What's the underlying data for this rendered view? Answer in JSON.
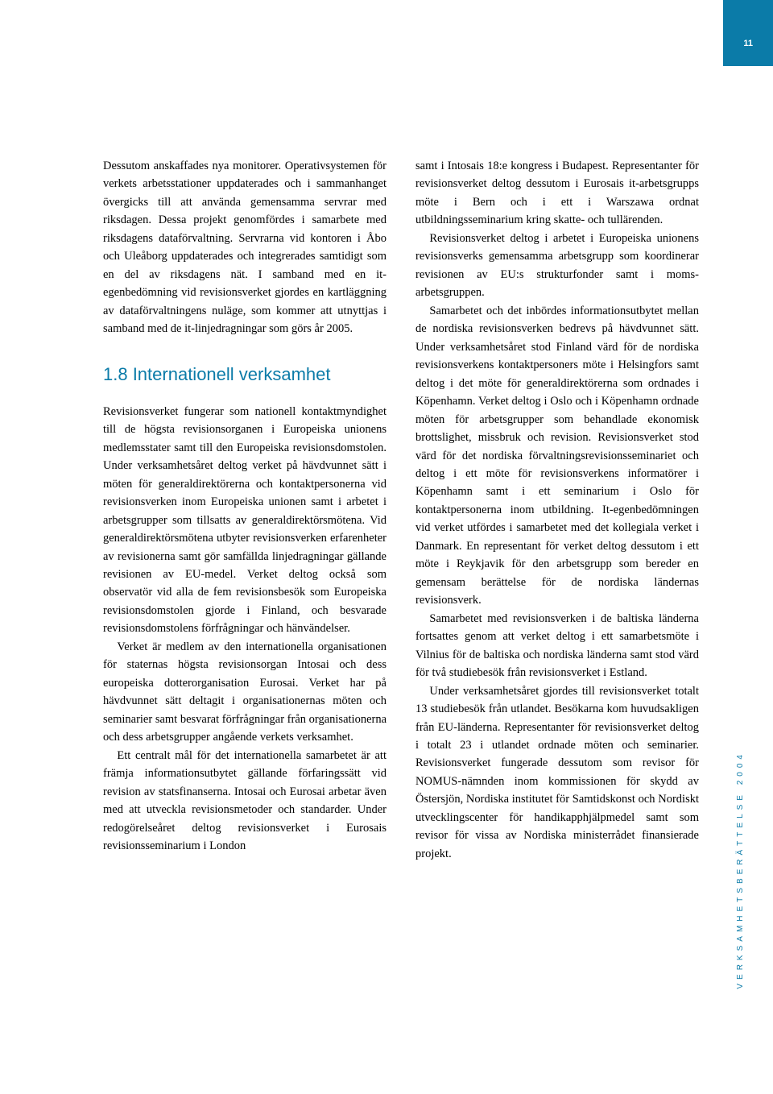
{
  "page_number": "11",
  "accent_color": "#0b7ba8",
  "background_color": "#ffffff",
  "text_color": "#000000",
  "heading_color": "#0b7ba8",
  "column_left": {
    "para1": "Dessutom anskaffades nya monitorer. Operativsystemen för verkets arbetsstationer uppdaterades och i sammanhanget övergicks till att använda gemensamma servrar med riksdagen. Dessa projekt genomfördes i samarbete med riksdagens dataförvaltning. Servrarna vid kontoren i Åbo och Uleåborg uppdaterades och integrerades samtidigt som en del av riksdagens nät. I samband med en it-egenbedömning vid revisionsverket gjordes en kartläggning av dataförvaltningens nuläge, som kommer att utnyttjas i samband med de it-linjedragningar som görs år 2005.",
    "heading": "1.8 Internationell verksamhet",
    "para2": "Revisionsverket fungerar som nationell kontaktmyndighet till de högsta revisionsorganen i Europeiska unionens medlemsstater samt till den Europeiska revisionsdomstolen. Under verksamhetsåret deltog verket på hävdvunnet sätt i möten för generaldirektörerna och kontaktpersonerna vid revisionsverken inom Europeiska unionen samt i arbetet i arbetsgrupper som tillsatts av generaldirektörsmötena. Vid generaldirektörsmötena utbyter revisionsverken erfarenheter av revisionerna samt gör samfällda linjedragningar gällande revisionen av EU-medel. Verket deltog också som observatör vid alla de fem revisionsbesök som Europeiska revisionsdomstolen gjorde i Finland, och besvarade revisionsdomstolens förfrågningar och hänvändelser.",
    "para3": "Verket är medlem av den internationella organisationen för staternas högsta revisionsorgan Intosai och dess europeiska dotterorganisation Eurosai. Verket har på hävdvunnet sätt deltagit i organisationernas möten och seminarier samt besvarat förfrågningar från organisationerna och dess arbetsgrupper angående verkets verksamhet.",
    "para4": "Ett centralt mål för det internationella samarbetet är att främja informationsutbytet gällande förfaringssätt vid revision av statsfinanserna. Intosai och Eurosai arbetar även med att utveckla revisionsmetoder och standarder. Under redogörelseåret deltog revisionsverket i Eurosais revisionsseminarium i London"
  },
  "column_right": {
    "para1": "samt i Intosais 18:e kongress i Budapest. Representanter för revisionsverket deltog dessutom i Eurosais it-arbetsgrupps möte i Bern och i ett i Warszawa ordnat utbildningsseminarium kring skatte- och tullärenden.",
    "para2": "Revisionsverket deltog i arbetet i Europeiska unionens revisionsverks gemensamma arbetsgrupp som koordinerar revisionen av EU:s strukturfonder samt i moms-arbetsgruppen.",
    "para3": "Samarbetet och det inbördes informationsutbytet mellan de nordiska revisionsverken bedrevs på hävdvunnet sätt. Under verksamhetsåret stod Finland värd för de nordiska revisionsverkens kontaktpersoners möte i Helsingfors samt deltog i det möte för generaldirektörerna som ordnades i Köpenhamn. Verket deltog i Oslo och i Köpenhamn ordnade möten för arbetsgrupper som behandlade ekonomisk brottslighet, missbruk och revision. Revisionsverket stod värd för det nordiska förvaltningsrevisionsseminariet och deltog i ett möte för revisionsverkens informatörer i Köpenhamn samt i ett seminarium i Oslo för kontaktpersonerna inom utbildning. It-egenbedömningen vid verket utfördes i samarbetet med det kollegiala verket i Danmark. En representant för verket deltog dessutom i ett möte i Reykjavik för den arbetsgrupp som bereder en gemensam berättelse för de nordiska ländernas revisionsverk.",
    "para4": "Samarbetet med revisionsverken i de baltiska länderna fortsattes genom att verket deltog i ett samarbetsmöte i Vilnius för de baltiska och nordiska länderna samt stod värd för två studiebesök från revisionsverket i Estland.",
    "para5": "Under verksamhetsåret gjordes till revisionsverket totalt 13 studiebesök från utlandet. Besökarna kom huvudsakligen från EU-länderna. Representanter för revisionsverket deltog i totalt 23 i utlandet ordnade möten och seminarier. Revisionsverket fungerade dessutom som revisor för NOMUS-nämnden inom kommissionen för skydd av Östersjön, Nordiska institutet för Samtidskonst och Nordiskt utvecklingscenter för handikapphjälpmedel samt som revisor för vissa av Nordiska ministerrådet finansierade projekt."
  },
  "side_label": "VERKSAMHETSBERÄTTELSE 2004"
}
